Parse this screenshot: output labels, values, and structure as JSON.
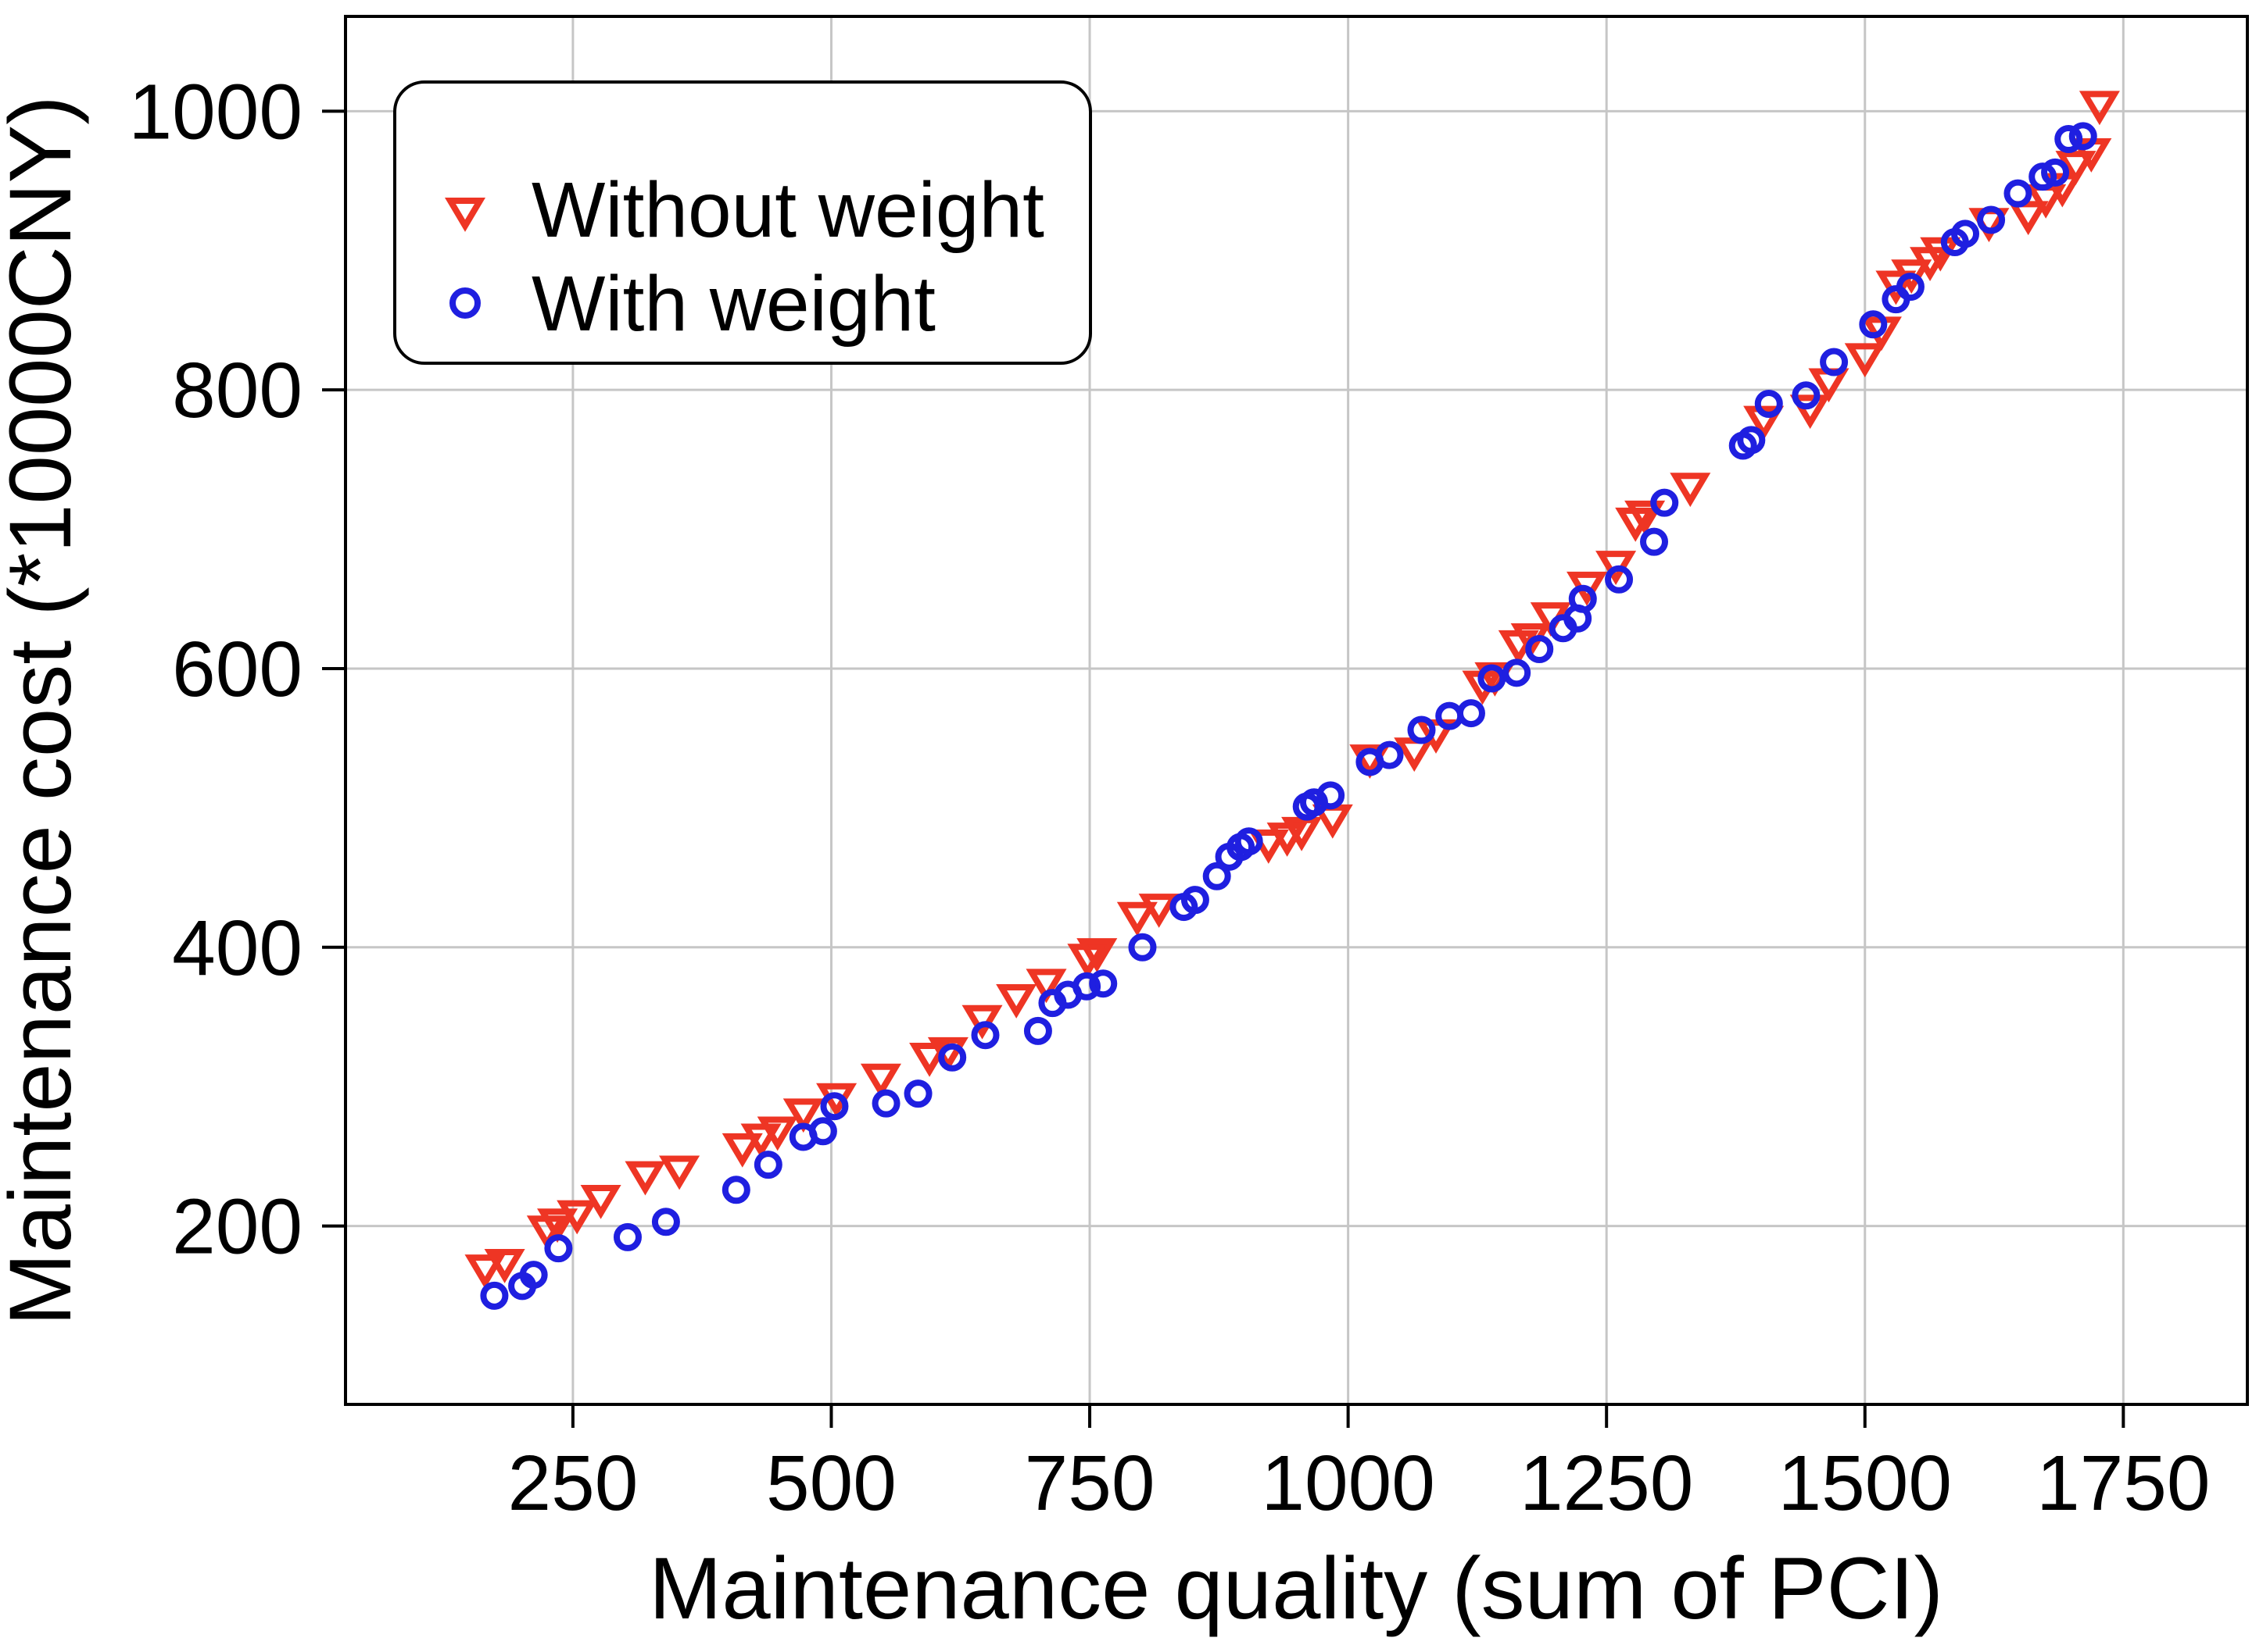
{
  "figure": {
    "background": "#ffffff",
    "frame_color": "#000000",
    "grid_color": "#c6c6c6"
  },
  "legend": {
    "items": [
      {
        "label": "Without weight",
        "marker": "triangle-down",
        "color": "#ee3524"
      },
      {
        "label": "With weight",
        "marker": "circle",
        "color": "#1f1fe0"
      }
    ]
  },
  "chart_data": {
    "type": "scatter",
    "title": "",
    "xlabel": "Maintenance quality (sum of PCI)",
    "ylabel": "Maintenance cost (*10000CNY)",
    "xlim": [
      30,
      1870
    ],
    "ylim": [
      72,
      1068
    ],
    "x_ticks": [
      250,
      500,
      750,
      1000,
      1250,
      1500,
      1750
    ],
    "y_ticks": [
      200,
      400,
      600,
      800,
      1000
    ],
    "grid": true,
    "legend_position": "upper left",
    "series": [
      {
        "name": "Without weight",
        "marker": "triangle-down",
        "color": "#ee3524",
        "points": [
          [
            165,
            170
          ],
          [
            184,
            174
          ],
          [
            225,
            198
          ],
          [
            235,
            203
          ],
          [
            254,
            209
          ],
          [
            277,
            220
          ],
          [
            320,
            237
          ],
          [
            353,
            241
          ],
          [
            414,
            257
          ],
          [
            432,
            264
          ],
          [
            448,
            269
          ],
          [
            473,
            282
          ],
          [
            505,
            293
          ],
          [
            548,
            307
          ],
          [
            595,
            322
          ],
          [
            613,
            326
          ],
          [
            646,
            349
          ],
          [
            679,
            364
          ],
          [
            708,
            375
          ],
          [
            748,
            393
          ],
          [
            757,
            397
          ],
          [
            796,
            423
          ],
          [
            817,
            429
          ],
          [
            923,
            475
          ],
          [
            941,
            480
          ],
          [
            955,
            484
          ],
          [
            985,
            493
          ],
          [
            1021,
            536
          ],
          [
            1064,
            541
          ],
          [
            1085,
            554
          ],
          [
            1130,
            589
          ],
          [
            1142,
            595
          ],
          [
            1165,
            618
          ],
          [
            1177,
            623
          ],
          [
            1196,
            638
          ],
          [
            1231,
            660
          ],
          [
            1259,
            675
          ],
          [
            1278,
            706
          ],
          [
            1287,
            711
          ],
          [
            1331,
            731
          ],
          [
            1402,
            779
          ],
          [
            1447,
            787
          ],
          [
            1465,
            806
          ],
          [
            1500,
            824
          ],
          [
            1516,
            843
          ],
          [
            1530,
            876
          ],
          [
            1545,
            884
          ],
          [
            1563,
            893
          ],
          [
            1573,
            900
          ],
          [
            1620,
            921
          ],
          [
            1658,
            926
          ],
          [
            1675,
            938
          ],
          [
            1691,
            946
          ],
          [
            1704,
            962
          ],
          [
            1719,
            971
          ],
          [
            1727,
            1005
          ]
        ]
      },
      {
        "name": "With weight",
        "marker": "circle",
        "color": "#1f1fe0",
        "points": [
          [
            174,
            150
          ],
          [
            201,
            157
          ],
          [
            212,
            165
          ],
          [
            236,
            184
          ],
          [
            303,
            192
          ],
          [
            340,
            203
          ],
          [
            408,
            226
          ],
          [
            439,
            244
          ],
          [
            473,
            264
          ],
          [
            492,
            268
          ],
          [
            503,
            286
          ],
          [
            553,
            288
          ],
          [
            584,
            295
          ],
          [
            617,
            321
          ],
          [
            649,
            337
          ],
          [
            700,
            340
          ],
          [
            714,
            360
          ],
          [
            729,
            366
          ],
          [
            747,
            372
          ],
          [
            763,
            374
          ],
          [
            801,
            400
          ],
          [
            841,
            429
          ],
          [
            852,
            434
          ],
          [
            873,
            451
          ],
          [
            885,
            465
          ],
          [
            896,
            472
          ],
          [
            904,
            476
          ],
          [
            960,
            501
          ],
          [
            967,
            504
          ],
          [
            983,
            509
          ],
          [
            1021,
            533
          ],
          [
            1040,
            538
          ],
          [
            1071,
            556
          ],
          [
            1098,
            566
          ],
          [
            1119,
            568
          ],
          [
            1139,
            593
          ],
          [
            1163,
            597
          ],
          [
            1185,
            614
          ],
          [
            1208,
            629
          ],
          [
            1222,
            636
          ],
          [
            1227,
            650
          ],
          [
            1262,
            664
          ],
          [
            1296,
            691
          ],
          [
            1306,
            719
          ],
          [
            1382,
            760
          ],
          [
            1390,
            764
          ],
          [
            1407,
            790
          ],
          [
            1443,
            796
          ],
          [
            1470,
            820
          ],
          [
            1508,
            847
          ],
          [
            1530,
            865
          ],
          [
            1544,
            874
          ],
          [
            1587,
            906
          ],
          [
            1597,
            912
          ],
          [
            1622,
            922
          ],
          [
            1648,
            941
          ],
          [
            1672,
            953
          ],
          [
            1684,
            956
          ],
          [
            1697,
            980
          ],
          [
            1711,
            982
          ]
        ]
      }
    ]
  }
}
